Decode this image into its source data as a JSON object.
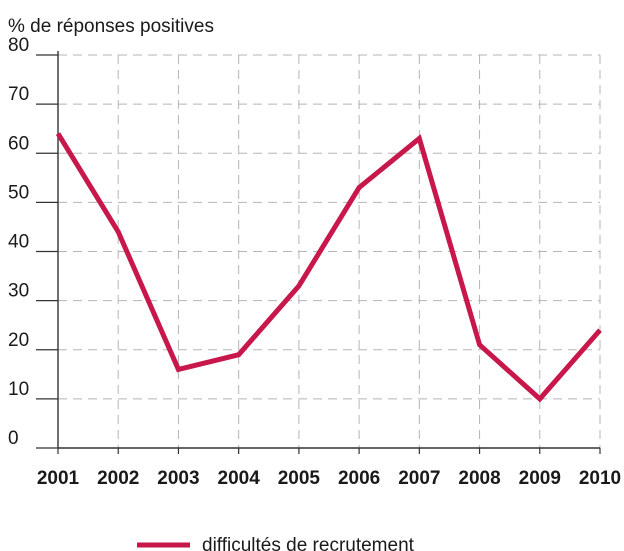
{
  "chart_data": {
    "type": "line",
    "ylabel": "% de réponses positives",
    "xlabel": "",
    "title": "",
    "categories": [
      "2001",
      "2002",
      "2003",
      "2004",
      "2005",
      "2006",
      "2007",
      "2008",
      "2009",
      "2010"
    ],
    "yticks": [
      "0",
      "10",
      "20",
      "30",
      "40",
      "50",
      "60",
      "70",
      "80"
    ],
    "ylim": [
      0,
      80
    ],
    "grid": true,
    "legend_position": "bottom-center",
    "series": [
      {
        "name": "difficultés de recrutement",
        "color": "#c8174a",
        "values": [
          64,
          44,
          16,
          19,
          33,
          53,
          63,
          21,
          10,
          24
        ]
      }
    ]
  }
}
